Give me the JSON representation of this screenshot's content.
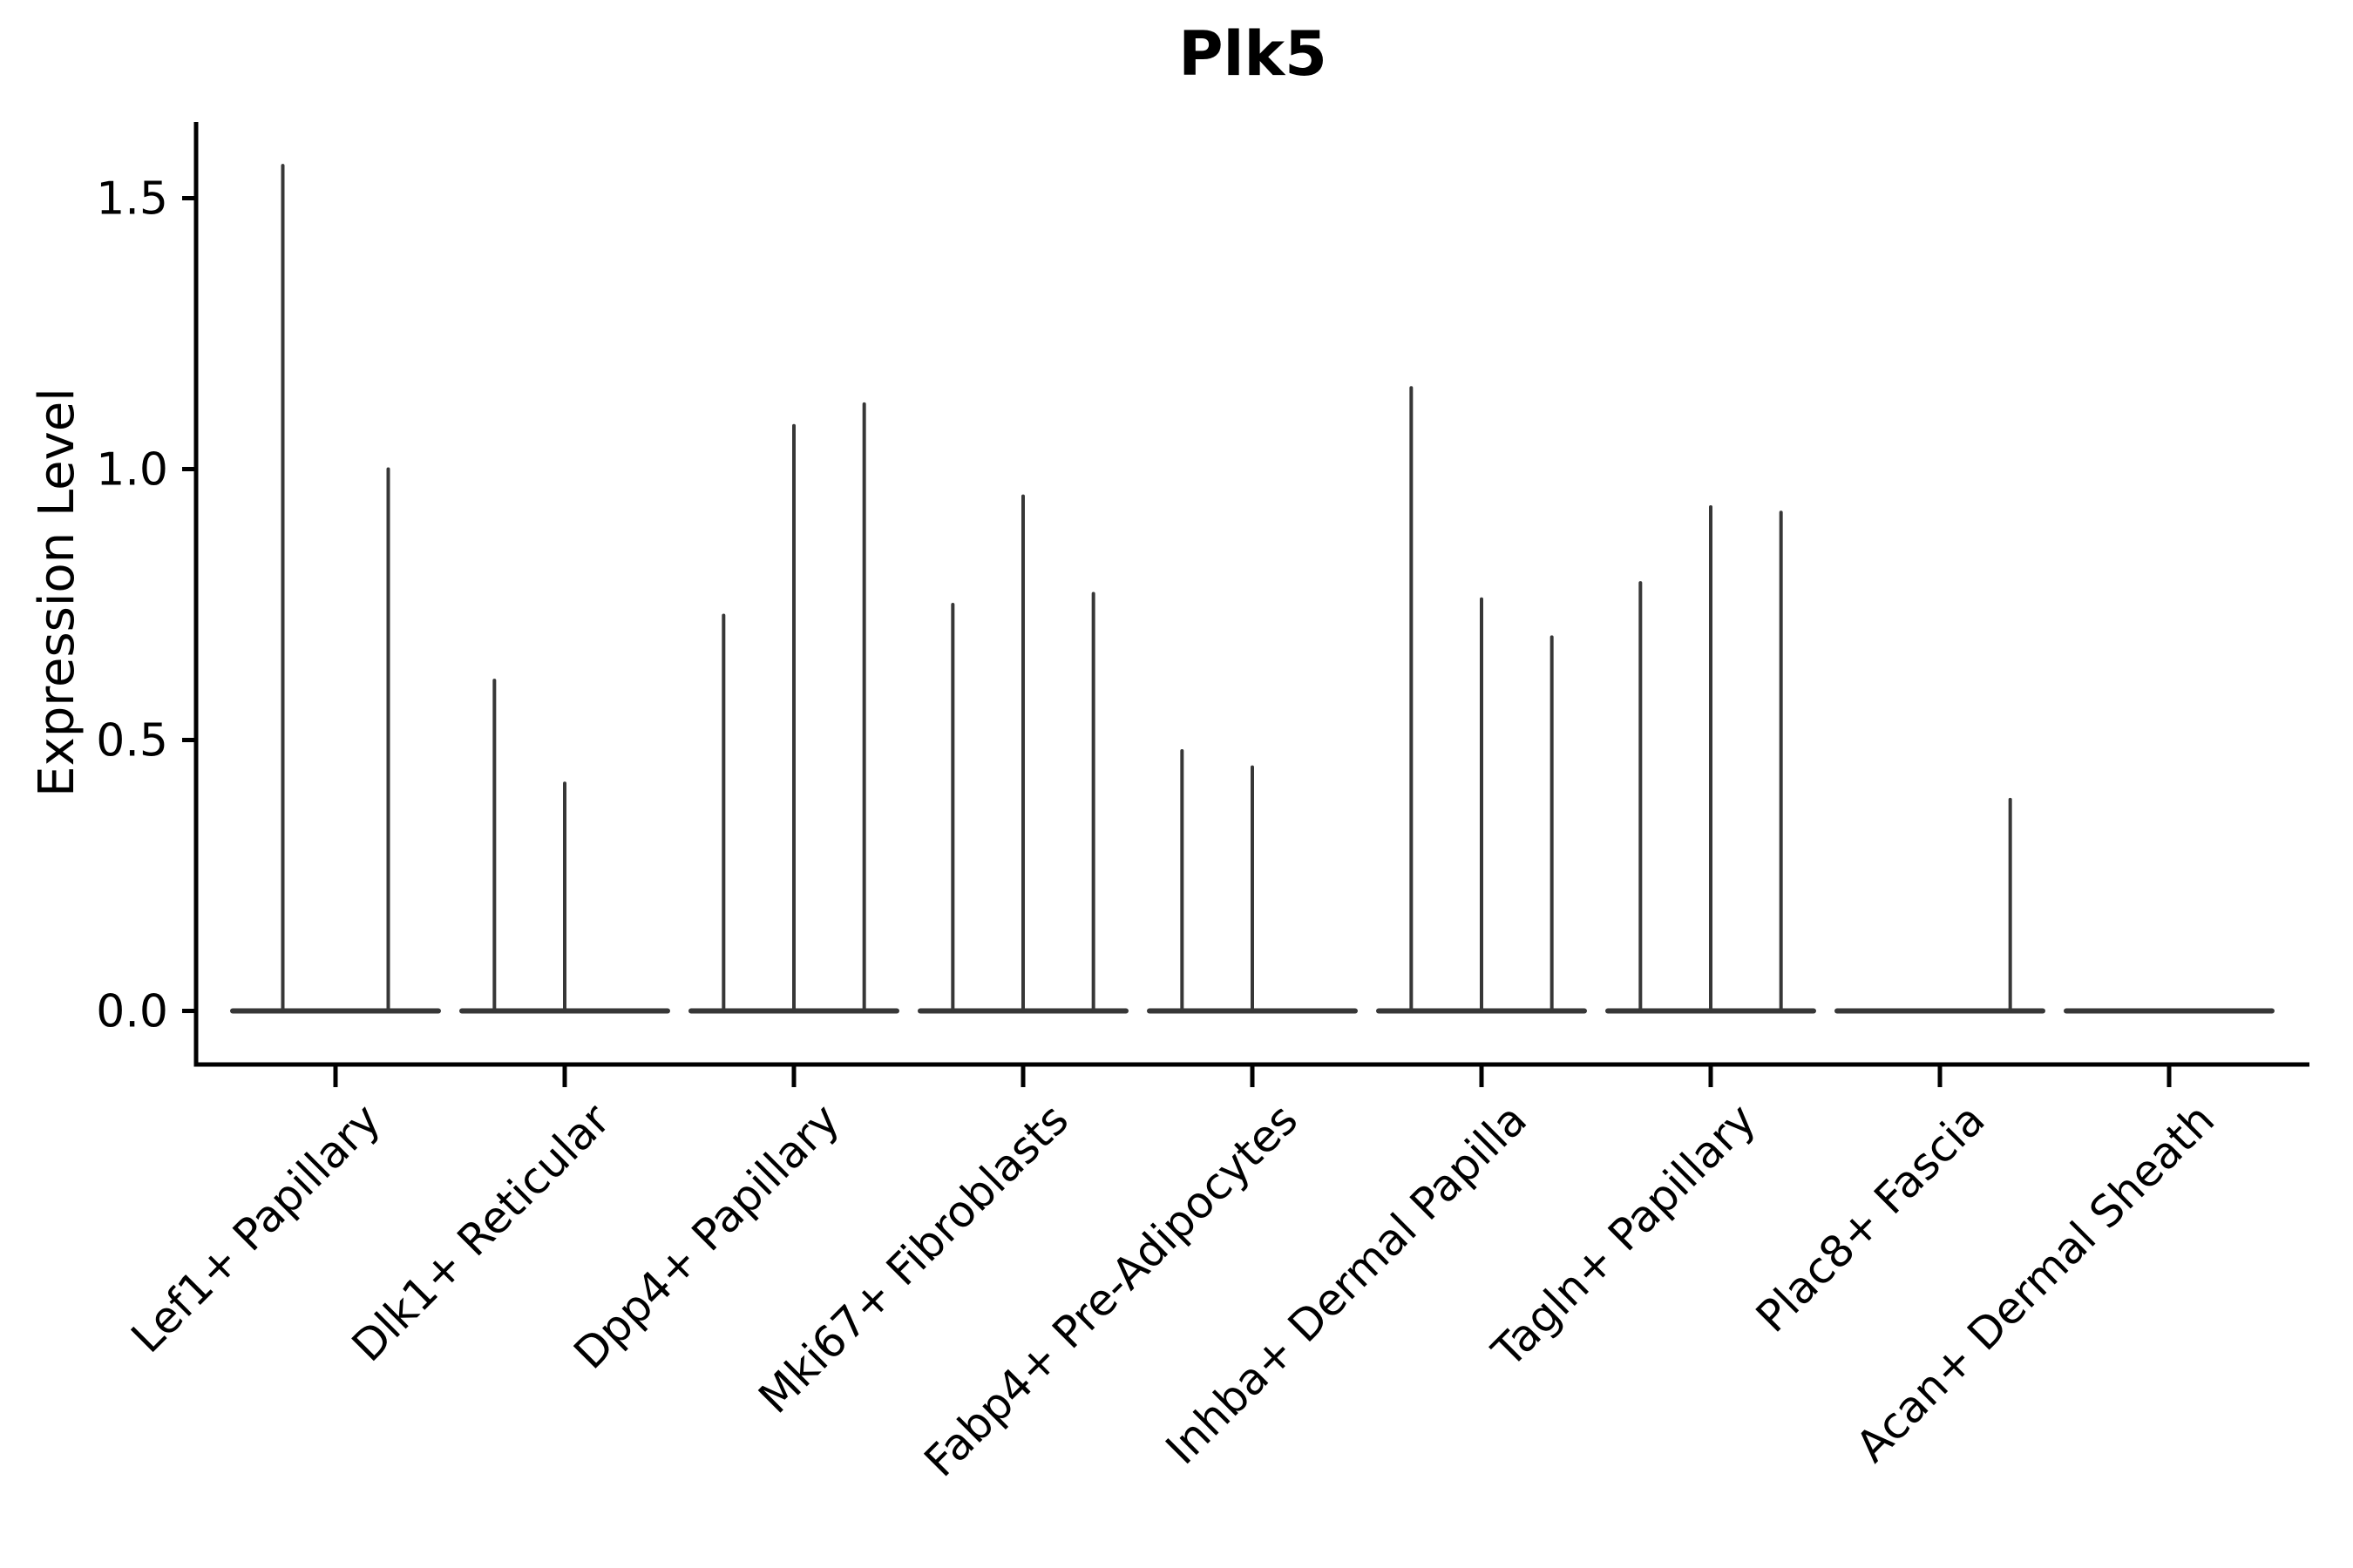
{
  "chart_data": {
    "type": "violin",
    "title": "Plk5",
    "ylabel": "Expression Level",
    "xlabel": "",
    "ylim": [
      0,
      1.64
    ],
    "grid": false,
    "legend": null,
    "y_ticks": [
      {
        "value": 0.0,
        "label": "0.0"
      },
      {
        "value": 0.5,
        "label": "0.5"
      },
      {
        "value": 1.0,
        "label": "1.0"
      },
      {
        "value": 1.5,
        "label": "1.5"
      }
    ],
    "categories": [
      "Lef1+ Papillary",
      "Dlk1+ Reticular",
      "Dpp4+ Papillary",
      "Mki67+ Fibroblasts",
      "Fabp4+ Pre-Adipocytes",
      "Inhba+ Dermal Papilla",
      "Tagln+ Papillary",
      "Plac8+ Fascia",
      "Acan+ Dermal Sheath"
    ],
    "groups": [
      {
        "category": "Lef1+ Papillary",
        "n_slots": 2,
        "violins": [
          {
            "slot": 0,
            "peak": 1.56
          },
          {
            "slot": 1,
            "peak": 1.0
          }
        ]
      },
      {
        "category": "Dlk1+ Reticular",
        "n_slots": 3,
        "violins": [
          {
            "slot": 0,
            "peak": 0.61
          },
          {
            "slot": 1,
            "peak": 0.42
          }
        ]
      },
      {
        "category": "Dpp4+ Papillary",
        "n_slots": 3,
        "violins": [
          {
            "slot": 0,
            "peak": 0.73
          },
          {
            "slot": 1,
            "peak": 1.08
          },
          {
            "slot": 2,
            "peak": 1.12
          }
        ]
      },
      {
        "category": "Mki67+ Fibroblasts",
        "n_slots": 3,
        "violins": [
          {
            "slot": 0,
            "peak": 0.75
          },
          {
            "slot": 1,
            "peak": 0.95
          },
          {
            "slot": 2,
            "peak": 0.77
          }
        ]
      },
      {
        "category": "Fabp4+ Pre-Adipocytes",
        "n_slots": 3,
        "violins": [
          {
            "slot": 0,
            "peak": 0.48
          },
          {
            "slot": 1,
            "peak": 0.45
          }
        ]
      },
      {
        "category": "Inhba+ Dermal Papilla",
        "n_slots": 3,
        "violins": [
          {
            "slot": 0,
            "peak": 1.15
          },
          {
            "slot": 1,
            "peak": 0.76
          },
          {
            "slot": 2,
            "peak": 0.69
          }
        ]
      },
      {
        "category": "Tagln+ Papillary",
        "n_slots": 3,
        "violins": [
          {
            "slot": 0,
            "peak": 0.79
          },
          {
            "slot": 1,
            "peak": 0.93
          },
          {
            "slot": 2,
            "peak": 0.92
          }
        ]
      },
      {
        "category": "Plac8+ Fascia",
        "n_slots": 3,
        "violins": [
          {
            "slot": 2,
            "peak": 0.39
          }
        ]
      },
      {
        "category": "Acan+ Dermal Sheath",
        "n_slots": 3,
        "violins": []
      }
    ],
    "colors": {
      "violin": "#373737",
      "axis": "#000000",
      "text": "#000000",
      "background": "#ffffff"
    }
  }
}
